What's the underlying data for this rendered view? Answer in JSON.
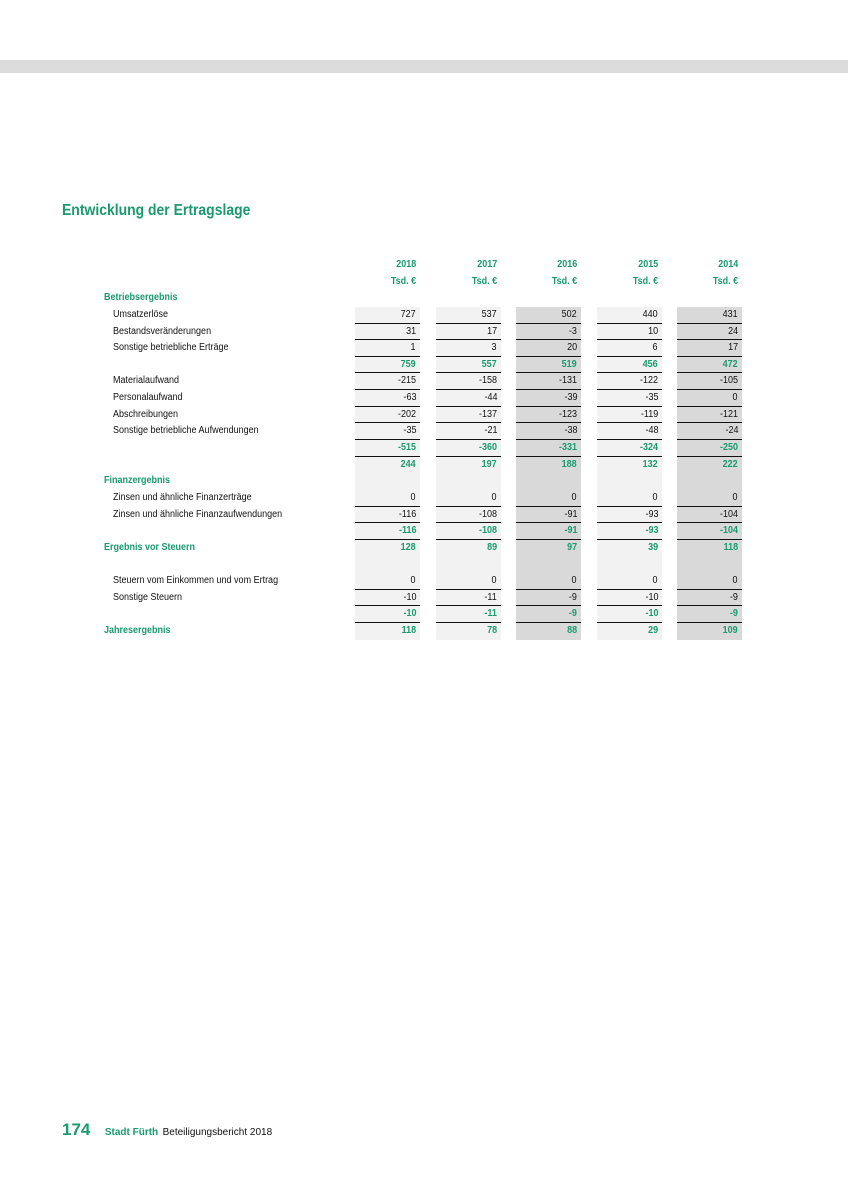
{
  "title": "Entwicklung der Ertragslage",
  "years": [
    "2018",
    "2017",
    "2016",
    "2015",
    "2014"
  ],
  "unit": "Tsd. €",
  "rows": [
    {
      "label": "Betriebsergebnis",
      "type": "section",
      "values": []
    },
    {
      "label": "Umsatzerlöse",
      "type": "item",
      "values": [
        "727",
        "537",
        "502",
        "440",
        "431"
      ],
      "line": true
    },
    {
      "label": "Bestandsveränderungen",
      "type": "item",
      "values": [
        "31",
        "17",
        "-3",
        "10",
        "24"
      ],
      "line": true
    },
    {
      "label": "Sonstige betriebliche Erträge",
      "type": "item",
      "values": [
        "1",
        "3",
        "20",
        "6",
        "17"
      ],
      "line": true
    },
    {
      "label": "",
      "type": "subtotal",
      "values": [
        "759",
        "557",
        "519",
        "456",
        "472"
      ],
      "line": true
    },
    {
      "label": "Materialaufwand",
      "type": "item",
      "values": [
        "-215",
        "-158",
        "-131",
        "-122",
        "-105"
      ],
      "line": true
    },
    {
      "label": "Personalaufwand",
      "type": "item",
      "values": [
        "-63",
        "-44",
        "-39",
        "-35",
        "0"
      ],
      "line": true
    },
    {
      "label": "Abschreibungen",
      "type": "item",
      "values": [
        "-202",
        "-137",
        "-123",
        "-119",
        "-121"
      ],
      "line": true
    },
    {
      "label": "Sonstige betriebliche Aufwendungen",
      "type": "item",
      "values": [
        "-35",
        "-21",
        "-38",
        "-48",
        "-24"
      ],
      "line": true
    },
    {
      "label": "",
      "type": "subtotal",
      "values": [
        "-515",
        "-360",
        "-331",
        "-324",
        "-250"
      ],
      "line": true
    },
    {
      "label": "",
      "type": "subtotal",
      "values": [
        "244",
        "197",
        "188",
        "132",
        "222"
      ]
    },
    {
      "label": "Finanzergebnis",
      "type": "section",
      "values": [
        "",
        "",
        "",
        "",
        ""
      ]
    },
    {
      "label": "Zinsen und ähnliche Finanzerträge",
      "type": "item",
      "values": [
        "0",
        "0",
        "0",
        "0",
        "0"
      ],
      "line": true
    },
    {
      "label": "Zinsen und ähnliche Finanzaufwendungen",
      "type": "item",
      "values": [
        "-116",
        "-108",
        "-91",
        "-93",
        "-104"
      ],
      "line": true
    },
    {
      "label": "",
      "type": "subtotal",
      "values": [
        "-116",
        "-108",
        "-91",
        "-93",
        "-104"
      ],
      "line": true
    },
    {
      "label": "Ergebnis vor Steuern",
      "type": "section",
      "values": [
        "128",
        "89",
        "97",
        "39",
        "118"
      ]
    },
    {
      "label": "",
      "type": "item",
      "values": [
        "",
        "",
        "",
        "",
        ""
      ]
    },
    {
      "label": "Steuern vom Einkommen und vom Ertrag",
      "type": "item",
      "values": [
        "0",
        "0",
        "0",
        "0",
        "0"
      ],
      "line": true
    },
    {
      "label": "Sonstige Steuern",
      "type": "item",
      "values": [
        "-10",
        "-11",
        "-9",
        "-10",
        "-9"
      ],
      "line": true
    },
    {
      "label": "",
      "type": "subtotal",
      "values": [
        "-10",
        "-11",
        "-9",
        "-10",
        "-9"
      ],
      "line": true
    },
    {
      "label": "Jahresergebnis",
      "type": "section",
      "values": [
        "118",
        "78",
        "88",
        "29",
        "109"
      ]
    }
  ],
  "footer": {
    "page": "174",
    "city": "Stadt Fürth",
    "report": "Beteiligungsbericht 2018"
  },
  "colors": {
    "accent": "#1a9a6e",
    "shade_light": "#f2f2f2",
    "shade_dark": "#d9d9d9"
  }
}
